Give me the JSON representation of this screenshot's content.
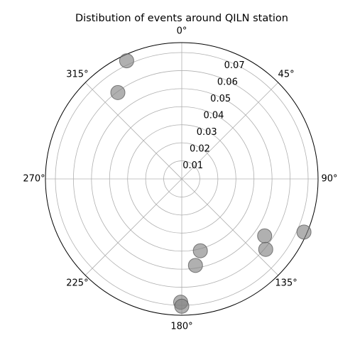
{
  "chart_data": {
    "type": "scatter",
    "projection": "polar",
    "title": "Distibution of events around QILN station",
    "theta_direction": "clockwise",
    "theta_zero": "N",
    "theta_ticks": [
      0,
      45,
      90,
      135,
      180,
      225,
      270,
      315
    ],
    "theta_tick_labels": [
      "0°",
      "45°",
      "90°",
      "135°",
      "180°",
      "225°",
      "270°",
      "315°"
    ],
    "r_ticks": [
      0.01,
      0.02,
      0.03,
      0.04,
      0.05,
      0.06,
      0.07
    ],
    "r_tick_labels": [
      "0.01",
      "0.02",
      "0.03",
      "0.04",
      "0.05",
      "0.06",
      "0.07"
    ],
    "rlim": [
      0,
      0.0755
    ],
    "rlabel_position_deg": 22.5,
    "grid": true,
    "marker_color": "#808080",
    "points": [
      {
        "theta": 335.0,
        "r": 0.0722
      },
      {
        "theta": 323.5,
        "r": 0.0595
      },
      {
        "theta": 113.5,
        "r": 0.0738
      },
      {
        "theta": 124.5,
        "r": 0.0557
      },
      {
        "theta": 130.0,
        "r": 0.0607
      },
      {
        "theta": 165.5,
        "r": 0.0411
      },
      {
        "theta": 171.0,
        "r": 0.0485
      },
      {
        "theta": 180.5,
        "r": 0.0683
      },
      {
        "theta": 180.0,
        "r": 0.0705
      }
    ]
  }
}
